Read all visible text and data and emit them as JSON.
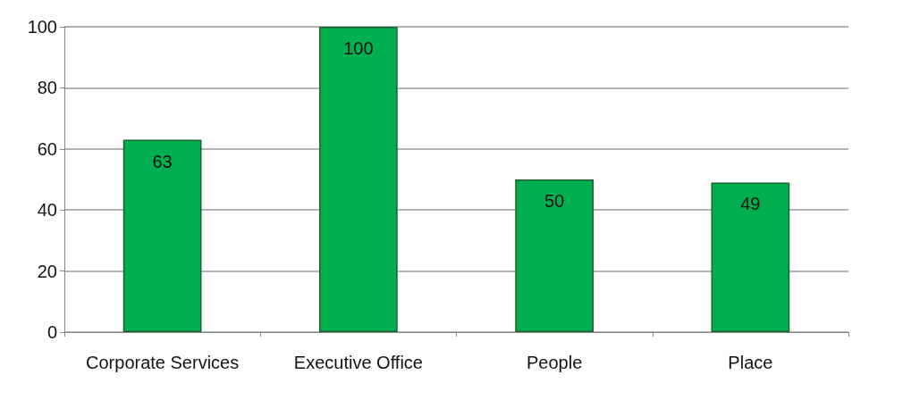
{
  "chart_data": {
    "type": "bar",
    "categories": [
      "Corporate Services",
      "Executive Office",
      "People",
      "Place"
    ],
    "values": [
      63,
      100,
      50,
      49
    ],
    "color": "#00b050",
    "ylim": [
      0,
      100
    ],
    "yticks": [
      0,
      20,
      40,
      60,
      80,
      100
    ],
    "grid": "y",
    "data_labels": true
  }
}
